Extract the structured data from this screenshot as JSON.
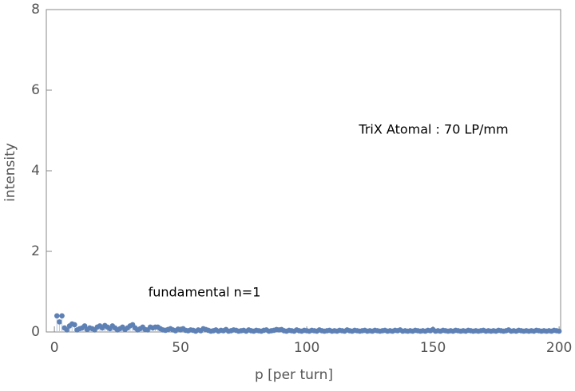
{
  "chart_data": {
    "type": "stem",
    "xlabel": "p [per turn]",
    "ylabel": "intensity",
    "annotations": [
      "TriX Atomal : 70 LP/mm",
      "fundamental n=1"
    ],
    "color": "#5e81b5",
    "xlim": [
      -3.2,
      200.6
    ],
    "ylim": [
      0,
      8
    ],
    "xticks": [
      0,
      50,
      100,
      150,
      200
    ],
    "yticks": [
      0,
      2,
      4,
      6,
      8
    ],
    "x": [
      1,
      2,
      3,
      4,
      5,
      6,
      7,
      8,
      9,
      10,
      11,
      12,
      13,
      14,
      15,
      16,
      17,
      18,
      19,
      20,
      21,
      22,
      23,
      24,
      25,
      26,
      27,
      28,
      29,
      30,
      31,
      32,
      33,
      34,
      35,
      36,
      37,
      38,
      39,
      40,
      41,
      42,
      43,
      44,
      45,
      46,
      47,
      48,
      49,
      50,
      51,
      52,
      53,
      54,
      55,
      56,
      57,
      58,
      59,
      60,
      61,
      62,
      63,
      64,
      65,
      66,
      67,
      68,
      69,
      70,
      71,
      72,
      73,
      74,
      75,
      76,
      77,
      78,
      79,
      80,
      81,
      82,
      83,
      84,
      85,
      86,
      87,
      88,
      89,
      90,
      91,
      92,
      93,
      94,
      95,
      96,
      97,
      98,
      99,
      100,
      101,
      102,
      103,
      104,
      105,
      106,
      107,
      108,
      109,
      110,
      111,
      112,
      113,
      114,
      115,
      116,
      117,
      118,
      119,
      120,
      121,
      122,
      123,
      124,
      125,
      126,
      127,
      128,
      129,
      130,
      131,
      132,
      133,
      134,
      135,
      136,
      137,
      138,
      139,
      140,
      141,
      142,
      143,
      144,
      145,
      146,
      147,
      148,
      149,
      150,
      151,
      152,
      153,
      154,
      155,
      156,
      157,
      158,
      159,
      160,
      161,
      162,
      163,
      164,
      165,
      166,
      167,
      168,
      169,
      170,
      171,
      172,
      173,
      174,
      175,
      176,
      177,
      178,
      179,
      180,
      181,
      182,
      183,
      184,
      185,
      186,
      187,
      188,
      189,
      190,
      191,
      192,
      193,
      194,
      195,
      196,
      197,
      198,
      199,
      200
    ],
    "values": [
      0.4,
      0.25,
      0.4,
      0.1,
      0.05,
      0.15,
      0.2,
      0.18,
      0.05,
      0.08,
      0.1,
      0.15,
      0.06,
      0.1,
      0.08,
      0.05,
      0.12,
      0.15,
      0.1,
      0.16,
      0.12,
      0.08,
      0.15,
      0.1,
      0.05,
      0.08,
      0.12,
      0.06,
      0.1,
      0.15,
      0.18,
      0.1,
      0.05,
      0.08,
      0.12,
      0.06,
      0.05,
      0.12,
      0.1,
      0.12,
      0.12,
      0.08,
      0.05,
      0.04,
      0.06,
      0.08,
      0.05,
      0.03,
      0.07,
      0.05,
      0.08,
      0.04,
      0.03,
      0.05,
      0.04,
      0.02,
      0.05,
      0.03,
      0.08,
      0.06,
      0.04,
      0.02,
      0.03,
      0.05,
      0.02,
      0.04,
      0.03,
      0.06,
      0.02,
      0.03,
      0.05,
      0.04,
      0.02,
      0.03,
      0.04,
      0.02,
      0.05,
      0.03,
      0.02,
      0.04,
      0.03,
      0.02,
      0.04,
      0.05,
      0.02,
      0.03,
      0.04,
      0.06,
      0.05,
      0.06,
      0.03,
      0.02,
      0.04,
      0.03,
      0.02,
      0.05,
      0.03,
      0.02,
      0.04,
      0.03,
      0.02,
      0.04,
      0.03,
      0.02,
      0.05,
      0.03,
      0.02,
      0.03,
      0.04,
      0.02,
      0.03,
      0.02,
      0.04,
      0.03,
      0.02,
      0.05,
      0.03,
      0.02,
      0.04,
      0.03,
      0.02,
      0.03,
      0.04,
      0.02,
      0.03,
      0.02,
      0.04,
      0.03,
      0.02,
      0.03,
      0.04,
      0.02,
      0.03,
      0.02,
      0.04,
      0.03,
      0.05,
      0.02,
      0.03,
      0.02,
      0.03,
      0.02,
      0.04,
      0.03,
      0.02,
      0.03,
      0.02,
      0.04,
      0.03,
      0.06,
      0.02,
      0.03,
      0.02,
      0.04,
      0.03,
      0.02,
      0.03,
      0.02,
      0.04,
      0.03,
      0.02,
      0.03,
      0.02,
      0.04,
      0.03,
      0.02,
      0.03,
      0.02,
      0.03,
      0.04,
      0.02,
      0.03,
      0.02,
      0.03,
      0.02,
      0.04,
      0.03,
      0.02,
      0.03,
      0.05,
      0.02,
      0.03,
      0.02,
      0.04,
      0.03,
      0.02,
      0.03,
      0.02,
      0.03,
      0.02,
      0.04,
      0.03,
      0.02,
      0.03,
      0.02,
      0.03,
      0.02,
      0.04,
      0.03,
      0.02
    ]
  }
}
